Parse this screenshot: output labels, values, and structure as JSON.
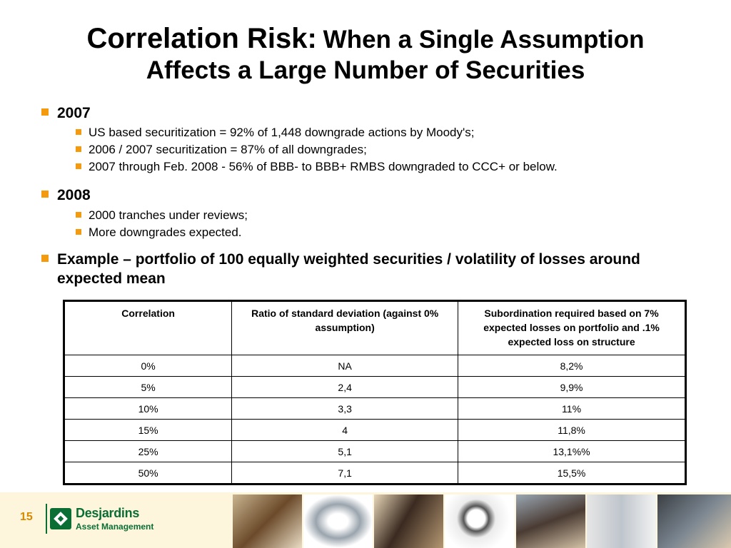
{
  "slide": {
    "title_main": "Correlation Risk:",
    "title_sub_line1": "When a Single Assumption",
    "title_sub_line2": "Affects a Large Number of Securities",
    "page_number": "15"
  },
  "bullets": {
    "b2007": {
      "heading": "2007",
      "items": [
        "US based securitization = 92% of 1,448 downgrade actions by Moody's;",
        "2006 / 2007 securitization = 87% of all downgrades;",
        "2007 through Feb. 2008 - 56% of BBB- to BBB+ RMBS downgraded to CCC+ or below."
      ]
    },
    "b2008": {
      "heading": "2008",
      "items": [
        "2000 tranches under reviews;",
        "More downgrades expected."
      ]
    },
    "example": "Example – portfolio of 100 equally weighted securities / volatility of losses around expected mean"
  },
  "table": {
    "headers": [
      "Correlation",
      "Ratio of standard deviation (against 0% assumption)",
      "Subordination required based on 7% expected losses on portfolio and .1% expected loss on structure"
    ],
    "rows": [
      [
        "0%",
        "NA",
        "8,2%"
      ],
      [
        "5%",
        "2,4",
        "9,9%"
      ],
      [
        "10%",
        "3,3",
        "11%"
      ],
      [
        "15%",
        "4",
        "11,8%"
      ],
      [
        "25%",
        "5,1",
        "13,1%%"
      ],
      [
        "50%",
        "7,1",
        "15,5%"
      ]
    ]
  },
  "footer": {
    "brand": "Desjardins",
    "brand_sub": "Asset Management",
    "accent_color": "#f39a0e",
    "brand_color": "#0a6e35",
    "photos": [
      "business-meeting-photo",
      "carabiner-photo",
      "office-meeting-photo",
      "magnifying-glass-photo",
      "phone-call-photo",
      "paper-crane-photo",
      "trading-desk-photo"
    ]
  }
}
